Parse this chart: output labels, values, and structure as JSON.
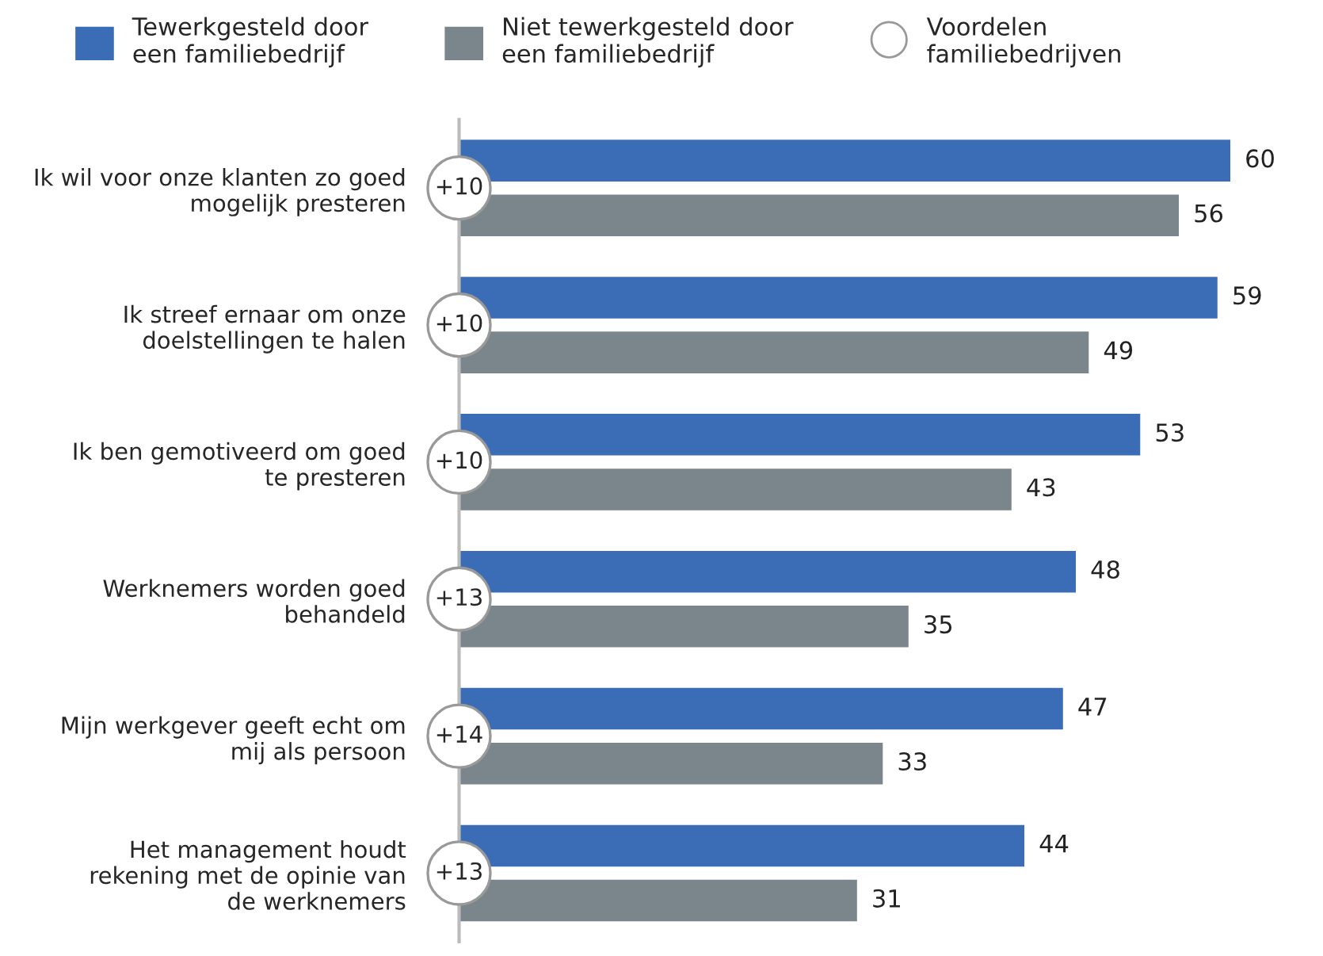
{
  "chart_data": {
    "type": "bar",
    "orientation": "horizontal",
    "categories": [
      "Ik wil voor onze klanten zo goed\nmogelijk presteren",
      "Ik streef ernaar om onze\ndoelstellingen te halen",
      "Ik ben gemotiveerd om goed\nte presteren",
      "Werknemers worden goed\nbehandeld",
      "Mijn werkgever geeft echt om\nmij als persoon",
      "Het management houdt\nrekening met de opinie van\nde werknemers"
    ],
    "series": [
      {
        "name": "Tewerkgesteld door\neen familiebedrijf",
        "color": "#3a6db5",
        "values": [
          60,
          59,
          53,
          48,
          47,
          44
        ]
      },
      {
        "name": "Niet tewerkgesteld door\neen familiebedrijf",
        "color": "#7a868c",
        "values": [
          56,
          49,
          43,
          35,
          33,
          31
        ]
      }
    ],
    "data_labels": true,
    "legend": "top",
    "grid": false,
    "annotations": [
      "Voordelen\nfamiliebedrijven",
      {
        "text": "+10",
        "y": "Ik wil voor onze klanten zo goed\nmogelijk presteren"
      },
      {
        "text": "+10",
        "y": "Ik streef ernaar om onze\ndoelstellingen te halen"
      },
      {
        "text": "+10",
        "y": "Ik ben gemotiveerd om goed\nte presteren"
      },
      {
        "text": "+13",
        "y": "Werknemers worden goed\nbehandeld"
      },
      {
        "text": "+14",
        "y": "Mijn werkgever geeft echt om\nmij als persoon"
      },
      {
        "text": "+13",
        "y": "Het management houdt\nrekening met de opinie van\nde werknemers"
      }
    ]
  }
}
